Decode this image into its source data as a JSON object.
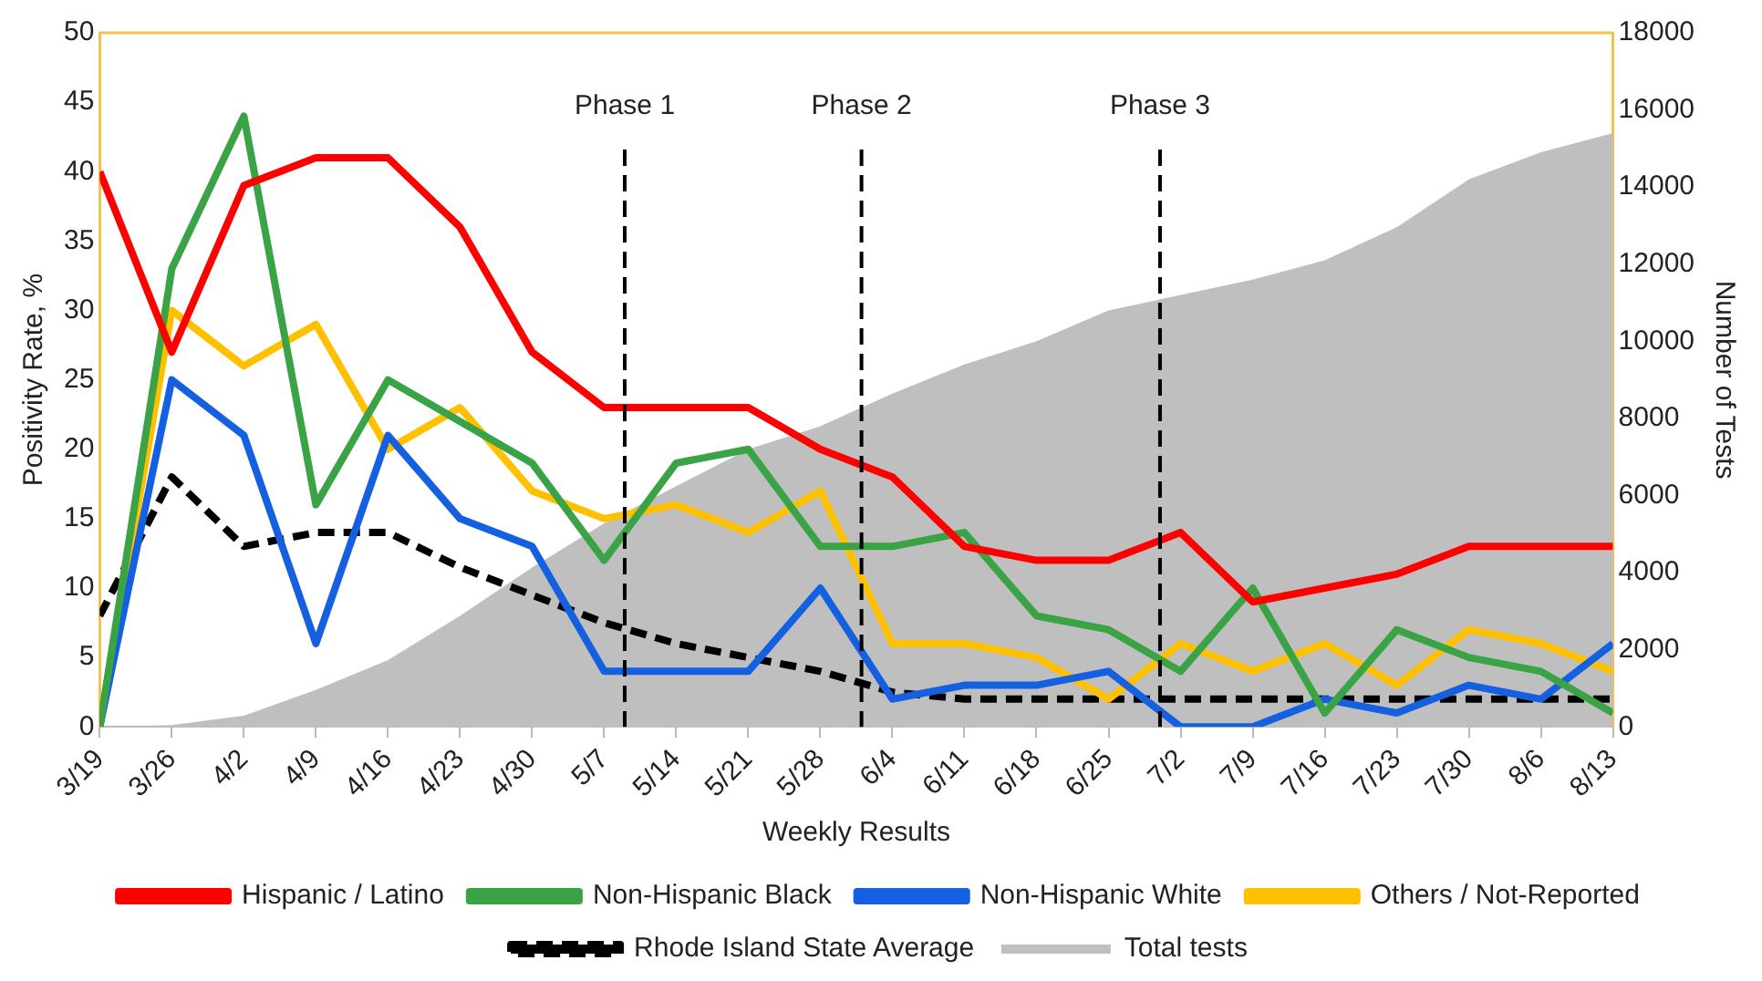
{
  "chart_data": {
    "type": "line",
    "xlabel": "Weekly Results",
    "ylabel": "Positivity Rate, %",
    "y2label": "Number of Tests",
    "x": [
      "--03-19",
      "--03-26",
      "--04-02",
      "--04-09",
      "--04-16",
      "--04-23",
      "--04-30",
      "--05-07",
      "--05-14",
      "--05-21",
      "--05-28",
      "--06-04",
      "--06-11",
      "--06-18",
      "--06-25",
      "--07-02",
      "--07-09",
      "--07-16",
      "--07-23",
      "--07-30",
      "--08-06",
      "--08-13"
    ],
    "xlim": [
      "--03-19",
      "--08-13"
    ],
    "xticks": [
      {
        "value": "--03-19",
        "label": "3/19"
      },
      {
        "value": "--03-26",
        "label": "3/26"
      },
      {
        "value": "--04-02",
        "label": "4/2"
      },
      {
        "value": "--04-09",
        "label": "4/9"
      },
      {
        "value": "--04-16",
        "label": "4/16"
      },
      {
        "value": "--04-23",
        "label": "4/23"
      },
      {
        "value": "--04-30",
        "label": "4/30"
      },
      {
        "value": "--05-07",
        "label": "5/7"
      },
      {
        "value": "--05-14",
        "label": "5/14"
      },
      {
        "value": "--05-21",
        "label": "5/21"
      },
      {
        "value": "--05-28",
        "label": "5/28"
      },
      {
        "value": "--06-04",
        "label": "6/4"
      },
      {
        "value": "--06-11",
        "label": "6/11"
      },
      {
        "value": "--06-18",
        "label": "6/18"
      },
      {
        "value": "--06-25",
        "label": "6/25"
      },
      {
        "value": "--07-02",
        "label": "7/2"
      },
      {
        "value": "--07-09",
        "label": "7/9"
      },
      {
        "value": "--07-16",
        "label": "7/16"
      },
      {
        "value": "--07-23",
        "label": "7/23"
      },
      {
        "value": "--07-30",
        "label": "7/30"
      },
      {
        "value": "--08-06",
        "label": "8/6"
      },
      {
        "value": "--08-13",
        "label": "8/13"
      }
    ],
    "ylim": [
      0,
      50
    ],
    "yticks": [
      0,
      5,
      10,
      15,
      20,
      25,
      30,
      35,
      40,
      45,
      50
    ],
    "y2lim": [
      0,
      18000
    ],
    "y2ticks": [
      0,
      2000,
      4000,
      6000,
      8000,
      10000,
      12000,
      14000,
      16000,
      18000
    ],
    "grid": false,
    "legend": "bottom",
    "marker": "none",
    "series": [
      {
        "name": "Total tests",
        "type": "area",
        "axis": "y2",
        "color": "#bfbfbf",
        "values": [
          0,
          50,
          290,
          960,
          1730,
          2880,
          4130,
          5280,
          6240,
          7200,
          7800,
          8640,
          9400,
          10000,
          10800,
          11200,
          11600,
          12100,
          12960,
          14200,
          14900,
          15400
        ]
      },
      {
        "name": "Hispanic / Latino",
        "color": "#ff0000",
        "values": [
          40,
          27,
          39,
          41,
          41,
          36,
          27,
          23,
          23,
          23,
          20,
          18,
          13,
          12,
          12,
          14,
          9,
          10,
          11,
          13,
          13,
          13
        ]
      },
      {
        "name": "Non-Hispanic Black",
        "color": "#3aa346",
        "values": [
          0,
          33,
          44,
          16,
          25,
          22,
          19,
          12,
          19,
          20,
          13,
          13,
          14,
          8,
          7,
          4,
          10,
          1,
          7,
          5,
          4,
          1
        ]
      },
      {
        "name": "Non-Hispanic White",
        "color": "#1560e0",
        "values": [
          0,
          25,
          21,
          6,
          21,
          15,
          13,
          4,
          4,
          4,
          10,
          2,
          3,
          3,
          4,
          0,
          0,
          2,
          1,
          3,
          2,
          6
        ]
      },
      {
        "name": "Others / Not-Reported",
        "color": "#ffc000",
        "values": [
          0,
          30,
          26,
          29,
          20,
          23,
          17,
          15,
          16,
          14,
          17,
          6,
          6,
          5,
          2,
          6,
          4,
          6,
          3,
          7,
          6,
          4
        ]
      },
      {
        "name": "Rhode Island State Average",
        "color": "#000000",
        "line_style": "dashed",
        "values": [
          8,
          18,
          13,
          14,
          14,
          11.5,
          9.5,
          7.5,
          6,
          5,
          4,
          2.5,
          2,
          2,
          2,
          2,
          2,
          2,
          2,
          2,
          2,
          2
        ]
      }
    ],
    "ref_lines": [
      {
        "axis": "x",
        "value": "--05-09",
        "label": "Phase 1",
        "color": "#000000",
        "line_style": "dashed"
      },
      {
        "axis": "x",
        "value": "--06-01",
        "label": "Phase 2",
        "color": "#000000",
        "line_style": "dashed"
      },
      {
        "axis": "x",
        "value": "--06-30",
        "label": "Phase 3",
        "color": "#000000",
        "line_style": "dashed"
      }
    ]
  }
}
